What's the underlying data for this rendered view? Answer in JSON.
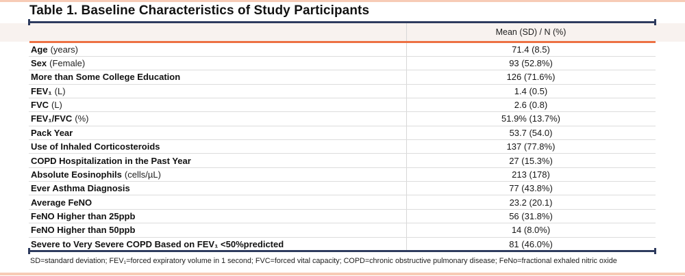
{
  "page": {
    "title": "Table 1. Baseline Characteristics of Study Participants",
    "footnote": "SD=standard deviation; FEV₁=forced expiratory volume in 1 second; FVC=forced vital capacity; COPD=chronic obstructive pulmonary disease; FeNo=fractional exhaled nitric oxide"
  },
  "table": {
    "value_header": "Mean (SD) / N (%)",
    "rows": [
      {
        "label": "Age",
        "unit": "(years)",
        "value": "71.4 (8.5)"
      },
      {
        "label": "Sex",
        "unit": "(Female)",
        "value": "93 (52.8%)"
      },
      {
        "label": "More than Some College Education",
        "unit": "",
        "value": "126 (71.6%)"
      },
      {
        "label": "FEV₁",
        "unit": "(L)",
        "value": "1.4 (0.5)"
      },
      {
        "label": "FVC",
        "unit": "(L)",
        "value": "2.6 (0.8)"
      },
      {
        "label": "FEV₁/FVC",
        "unit": "(%)",
        "value": "51.9% (13.7%)"
      },
      {
        "label": "Pack Year",
        "unit": "",
        "value": "53.7 (54.0)"
      },
      {
        "label": "Use of Inhaled Corticosteroids",
        "unit": "",
        "value": "137 (77.8%)"
      },
      {
        "label": "COPD Hospitalization in the Past Year",
        "unit": "",
        "value": "27 (15.3%)"
      },
      {
        "label": "Absolute Eosinophils",
        "unit": "(cells/µL)",
        "value": "213 (178)"
      },
      {
        "label": "Ever Asthma Diagnosis",
        "unit": "",
        "value": "77 (43.8%)"
      },
      {
        "label": "Average FeNO",
        "unit": "",
        "value": "23.2 (20.1)"
      },
      {
        "label": "FeNO Higher than 25ppb",
        "unit": "",
        "value": "56 (31.8%)"
      },
      {
        "label": "FeNO Higher than 50ppb",
        "unit": "",
        "value": "14 (8.0%)"
      },
      {
        "label": "Severe to Very Severe COPD Based on FEV₁ <50%predicted",
        "unit": "",
        "value": "81 (46.0%)"
      }
    ]
  },
  "colors": {
    "accent_navy": "#2e3b5e",
    "accent_orange": "#ed7143",
    "header_band_bg": "#f8f2ef",
    "page_edge_salmon": "#f7cbb6",
    "row_divider": "#dcdcdc"
  }
}
